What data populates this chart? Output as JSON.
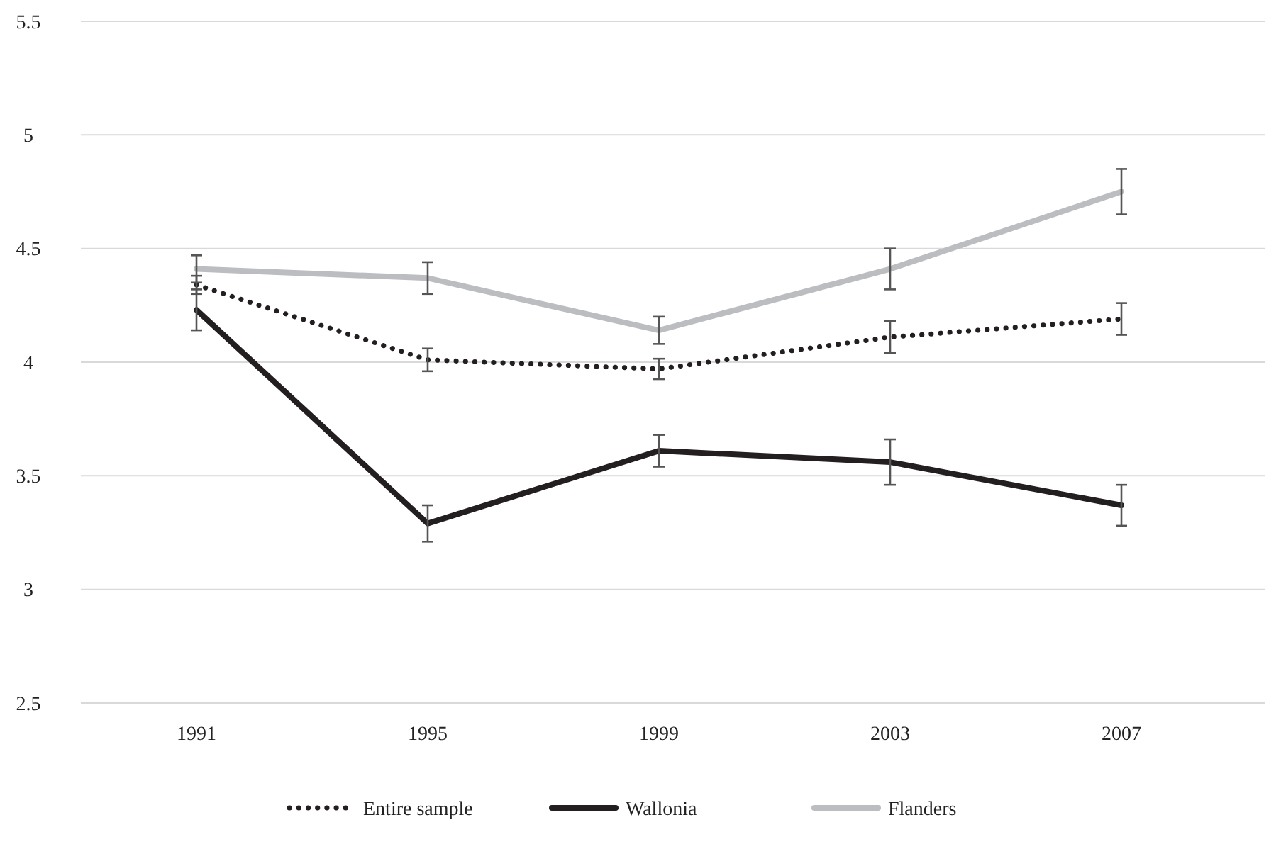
{
  "chart_data": {
    "type": "line",
    "categories": [
      "1991",
      "1995",
      "1999",
      "2003",
      "2007"
    ],
    "ylim": [
      2.5,
      5.5
    ],
    "yticks": [
      2.5,
      3,
      3.5,
      4,
      4.5,
      5,
      5.5
    ],
    "grid": "y",
    "legend": "bottom",
    "marker": "none",
    "series": [
      {
        "name": "Entire sample",
        "color": "#231f20",
        "line_style": "dotted",
        "values": [
          4.34,
          4.01,
          3.97,
          4.11,
          4.19
        ],
        "errors": [
          0.04,
          0.05,
          0.045,
          0.07,
          0.07
        ]
      },
      {
        "name": "Wallonia",
        "color": "#231f20",
        "line_style": "solid",
        "values": [
          4.23,
          3.29,
          3.61,
          3.56,
          3.37
        ],
        "errors": [
          0.09,
          0.08,
          0.07,
          0.1,
          0.09
        ]
      },
      {
        "name": "Flanders",
        "color": "#bcbdc0",
        "line_style": "solid",
        "values": [
          4.41,
          4.37,
          4.14,
          4.41,
          4.75
        ],
        "errors": [
          0.06,
          0.07,
          0.06,
          0.09,
          0.1
        ]
      }
    ]
  }
}
